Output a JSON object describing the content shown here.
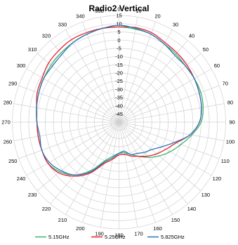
{
  "chart_data": {
    "type": "line",
    "polar": true,
    "title": "Radio2 Vertical",
    "angle_labels": [
      "0",
      "10",
      "20",
      "30",
      "40",
      "50",
      "60",
      "70",
      "80",
      "90",
      "100",
      "110",
      "120",
      "130",
      "140",
      "150",
      "160",
      "170",
      "180",
      "190",
      "200",
      "210",
      "220",
      "230",
      "240",
      "250",
      "260",
      "270",
      "280",
      "290",
      "300",
      "310",
      "320",
      "330",
      "340",
      "350"
    ],
    "radial_ticks": [
      15,
      10,
      5,
      0,
      -5,
      -10,
      -15,
      -20,
      -25,
      -30,
      -35,
      -40,
      -45
    ],
    "radial_tick_labels": [
      "15",
      "10",
      "5",
      "0",
      "-5",
      "-10",
      "-15",
      "-20",
      "-25",
      "-30",
      "-35",
      "-40",
      "-45"
    ],
    "rlim": [
      -50,
      15
    ],
    "grid": true,
    "legend_position": "bottom",
    "series": [
      {
        "name": "5.15GHz",
        "color": "#3cb371",
        "theta": [
          0,
          10,
          20,
          30,
          40,
          50,
          60,
          70,
          80,
          90,
          100,
          110,
          120,
          130,
          140,
          150,
          160,
          170,
          180,
          190,
          200,
          210,
          220,
          230,
          240,
          250,
          260,
          270,
          280,
          290,
          300,
          310,
          320,
          330,
          340,
          350
        ],
        "values": [
          8,
          7.5,
          7,
          5,
          4,
          3,
          3,
          3,
          2,
          0,
          -5,
          -10,
          -14,
          -18,
          -22,
          -26,
          -29,
          -31,
          -31,
          -29,
          -25,
          -16,
          -8,
          -3,
          0,
          0,
          0,
          0,
          1,
          2,
          3,
          4,
          5,
          6,
          7,
          8
        ]
      },
      {
        "name": "5.25GHz",
        "color": "#e8202e",
        "theta": [
          0,
          10,
          20,
          30,
          40,
          50,
          60,
          70,
          80,
          90,
          100,
          110,
          120,
          130,
          140,
          150,
          160,
          170,
          180,
          190,
          200,
          210,
          220,
          230,
          240,
          250,
          260,
          270,
          280,
          290,
          300,
          310,
          320,
          330,
          340,
          350
        ],
        "values": [
          8,
          8.5,
          8,
          6,
          5,
          4,
          3,
          2,
          1,
          -1,
          -6,
          -13,
          -17,
          -20,
          -23,
          -26,
          -28,
          -30,
          -30,
          -27,
          -23,
          -14,
          -7,
          -2,
          0,
          0,
          0,
          0,
          1,
          3,
          4,
          6,
          7,
          8,
          8,
          8
        ]
      },
      {
        "name": "5.825GHz",
        "color": "#2e75b6",
        "theta": [
          0,
          10,
          20,
          30,
          40,
          50,
          60,
          70,
          80,
          90,
          100,
          110,
          120,
          130,
          140,
          150,
          160,
          170,
          180,
          190,
          200,
          210,
          220,
          230,
          240,
          250,
          260,
          270,
          280,
          290,
          300,
          310,
          320,
          330,
          340,
          350
        ],
        "values": [
          9,
          8,
          7,
          5,
          3,
          3,
          3,
          2,
          1,
          -1,
          -6,
          -14,
          -20,
          -24,
          -26,
          -28,
          -29,
          -32,
          -31,
          -28,
          -24,
          -15,
          -8,
          -4,
          -1,
          0,
          -1,
          0,
          1,
          2,
          3,
          3,
          4,
          6,
          7,
          8
        ]
      }
    ]
  }
}
